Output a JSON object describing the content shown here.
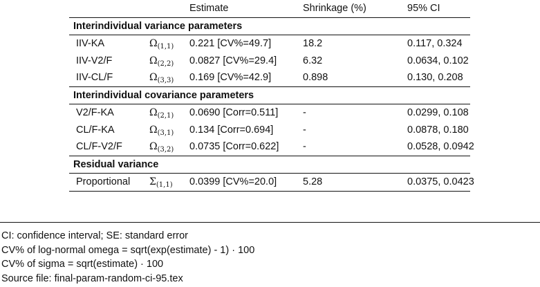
{
  "header": {
    "estimate": "Estimate",
    "shrinkage": "Shrinkage (%)",
    "ci": "95% CI"
  },
  "sections": [
    {
      "title": "Interindividual variance parameters",
      "rows": [
        {
          "name": "IIV-KA",
          "sym": "Ω",
          "idx": "(1,1)",
          "estimate": "0.221 [CV%=49.7]",
          "shrinkage": "18.2",
          "ci": "0.117, 0.324"
        },
        {
          "name": "IIV-V2/F",
          "sym": "Ω",
          "idx": "(2,2)",
          "estimate": "0.0827 [CV%=29.4]",
          "shrinkage": "6.32",
          "ci": "0.0634, 0.102"
        },
        {
          "name": "IIV-CL/F",
          "sym": "Ω",
          "idx": "(3,3)",
          "estimate": "0.169 [CV%=42.9]",
          "shrinkage": "0.898",
          "ci": "0.130, 0.208"
        }
      ]
    },
    {
      "title": "Interindividual covariance parameters",
      "rows": [
        {
          "name": "V2/F-KA",
          "sym": "Ω",
          "idx": "(2,1)",
          "estimate": "0.0690 [Corr=0.511]",
          "shrinkage": "-",
          "ci": "0.0299, 0.108"
        },
        {
          "name": "CL/F-KA",
          "sym": "Ω",
          "idx": "(3,1)",
          "estimate": "0.134 [Corr=0.694]",
          "shrinkage": "-",
          "ci": "0.0878, 0.180"
        },
        {
          "name": "CL/F-V2/F",
          "sym": "Ω",
          "idx": "(3,2)",
          "estimate": "0.0735 [Corr=0.622]",
          "shrinkage": "-",
          "ci": "0.0528, 0.0942"
        }
      ]
    },
    {
      "title": "Residual variance",
      "rows": [
        {
          "name": "Proportional",
          "sym": "Σ",
          "idx": "(1,1)",
          "estimate": "0.0399 [CV%=20.0]",
          "shrinkage": "5.28",
          "ci": "0.0375, 0.0423"
        }
      ]
    }
  ],
  "notes": [
    "CI: confidence interval; SE: standard error",
    "CV% of log-normal omega = sqrt(exp(estimate) - 1) · 100",
    "CV% of sigma = sqrt(estimate) · 100",
    "Source file: final-param-random-ci-95.tex"
  ]
}
